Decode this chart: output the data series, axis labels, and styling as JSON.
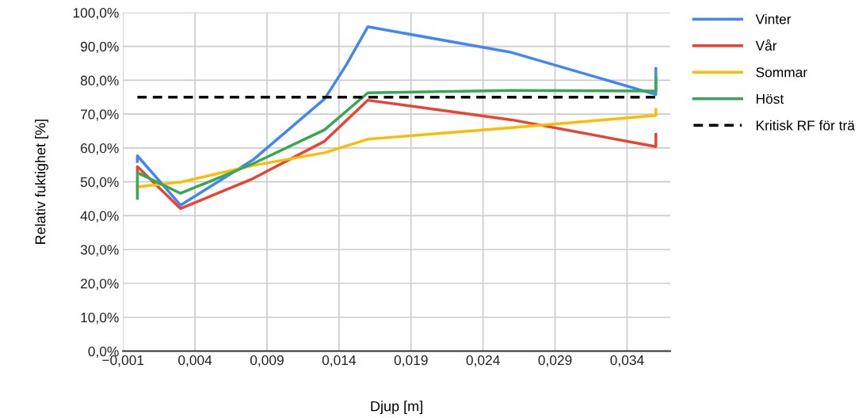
{
  "chart_data": {
    "type": "line",
    "xlabel": "Djup [m]",
    "ylabel": "Relativ fuktighet [%]",
    "xlim": [
      -0.001,
      0.037
    ],
    "ylim": [
      0,
      100
    ],
    "xticks": [
      {
        "value": -0.001,
        "label": "−0,001"
      },
      {
        "value": 0.004,
        "label": "0,004"
      },
      {
        "value": 0.009,
        "label": "0,009"
      },
      {
        "value": 0.014,
        "label": "0,014"
      },
      {
        "value": 0.019,
        "label": "0,019"
      },
      {
        "value": 0.024,
        "label": "0,024"
      },
      {
        "value": 0.029,
        "label": "0,029"
      },
      {
        "value": 0.034,
        "label": "0,034"
      }
    ],
    "yticks": [
      {
        "value": 0,
        "label": "0,0%"
      },
      {
        "value": 10,
        "label": "10,0%"
      },
      {
        "value": 20,
        "label": "20,0%"
      },
      {
        "value": 30,
        "label": "30,0%"
      },
      {
        "value": 40,
        "label": "40,0%"
      },
      {
        "value": 50,
        "label": "50,0%"
      },
      {
        "value": 60,
        "label": "60,0%"
      },
      {
        "value": 70,
        "label": "70,0%"
      },
      {
        "value": 80,
        "label": "80,0%"
      },
      {
        "value": 90,
        "label": "90,0%"
      },
      {
        "value": 100,
        "label": "100,0%"
      }
    ],
    "grid": true,
    "legend": "right",
    "marker": "none",
    "series": [
      {
        "name": "Vinter",
        "color": "#4285f4",
        "x": [
          0,
          0,
          0.003,
          0.008,
          0.013,
          0.0145,
          0.016,
          0.026,
          0.036,
          0.036
        ],
        "values": [
          56,
          57.7,
          43.1,
          56.4,
          74.5,
          84.5,
          95.8,
          88.2,
          75.8,
          83.5
        ]
      },
      {
        "name": "Vår",
        "color": "#ea4335",
        "x": [
          0,
          0,
          0.003,
          0.008,
          0.013,
          0.016,
          0.026,
          0.036,
          0.036
        ],
        "values": [
          53,
          54.5,
          42.1,
          50.9,
          62,
          74.1,
          68.3,
          60.4,
          64
        ]
      },
      {
        "name": "Sommar",
        "color": "#fbbc04",
        "x": [
          0,
          0.003,
          0.008,
          0.013,
          0.016,
          0.026,
          0.036,
          0.036
        ],
        "values": [
          48.5,
          49.9,
          54.8,
          58.6,
          62.6,
          66,
          69.6,
          71.4
        ]
      },
      {
        "name": "Höst",
        "color": "#34a853",
        "x": [
          0,
          0,
          0.003,
          0.008,
          0.013,
          0.016,
          0.026,
          0.036,
          0.036
        ],
        "values": [
          45.1,
          52.7,
          46.6,
          55.3,
          65.4,
          76.3,
          77,
          76.8,
          80.6
        ]
      },
      {
        "name": "Kritisk RF för trä",
        "color": "#000000",
        "line_style": "dashed",
        "x": [
          0,
          0.036
        ],
        "values": [
          75,
          75
        ]
      }
    ]
  }
}
